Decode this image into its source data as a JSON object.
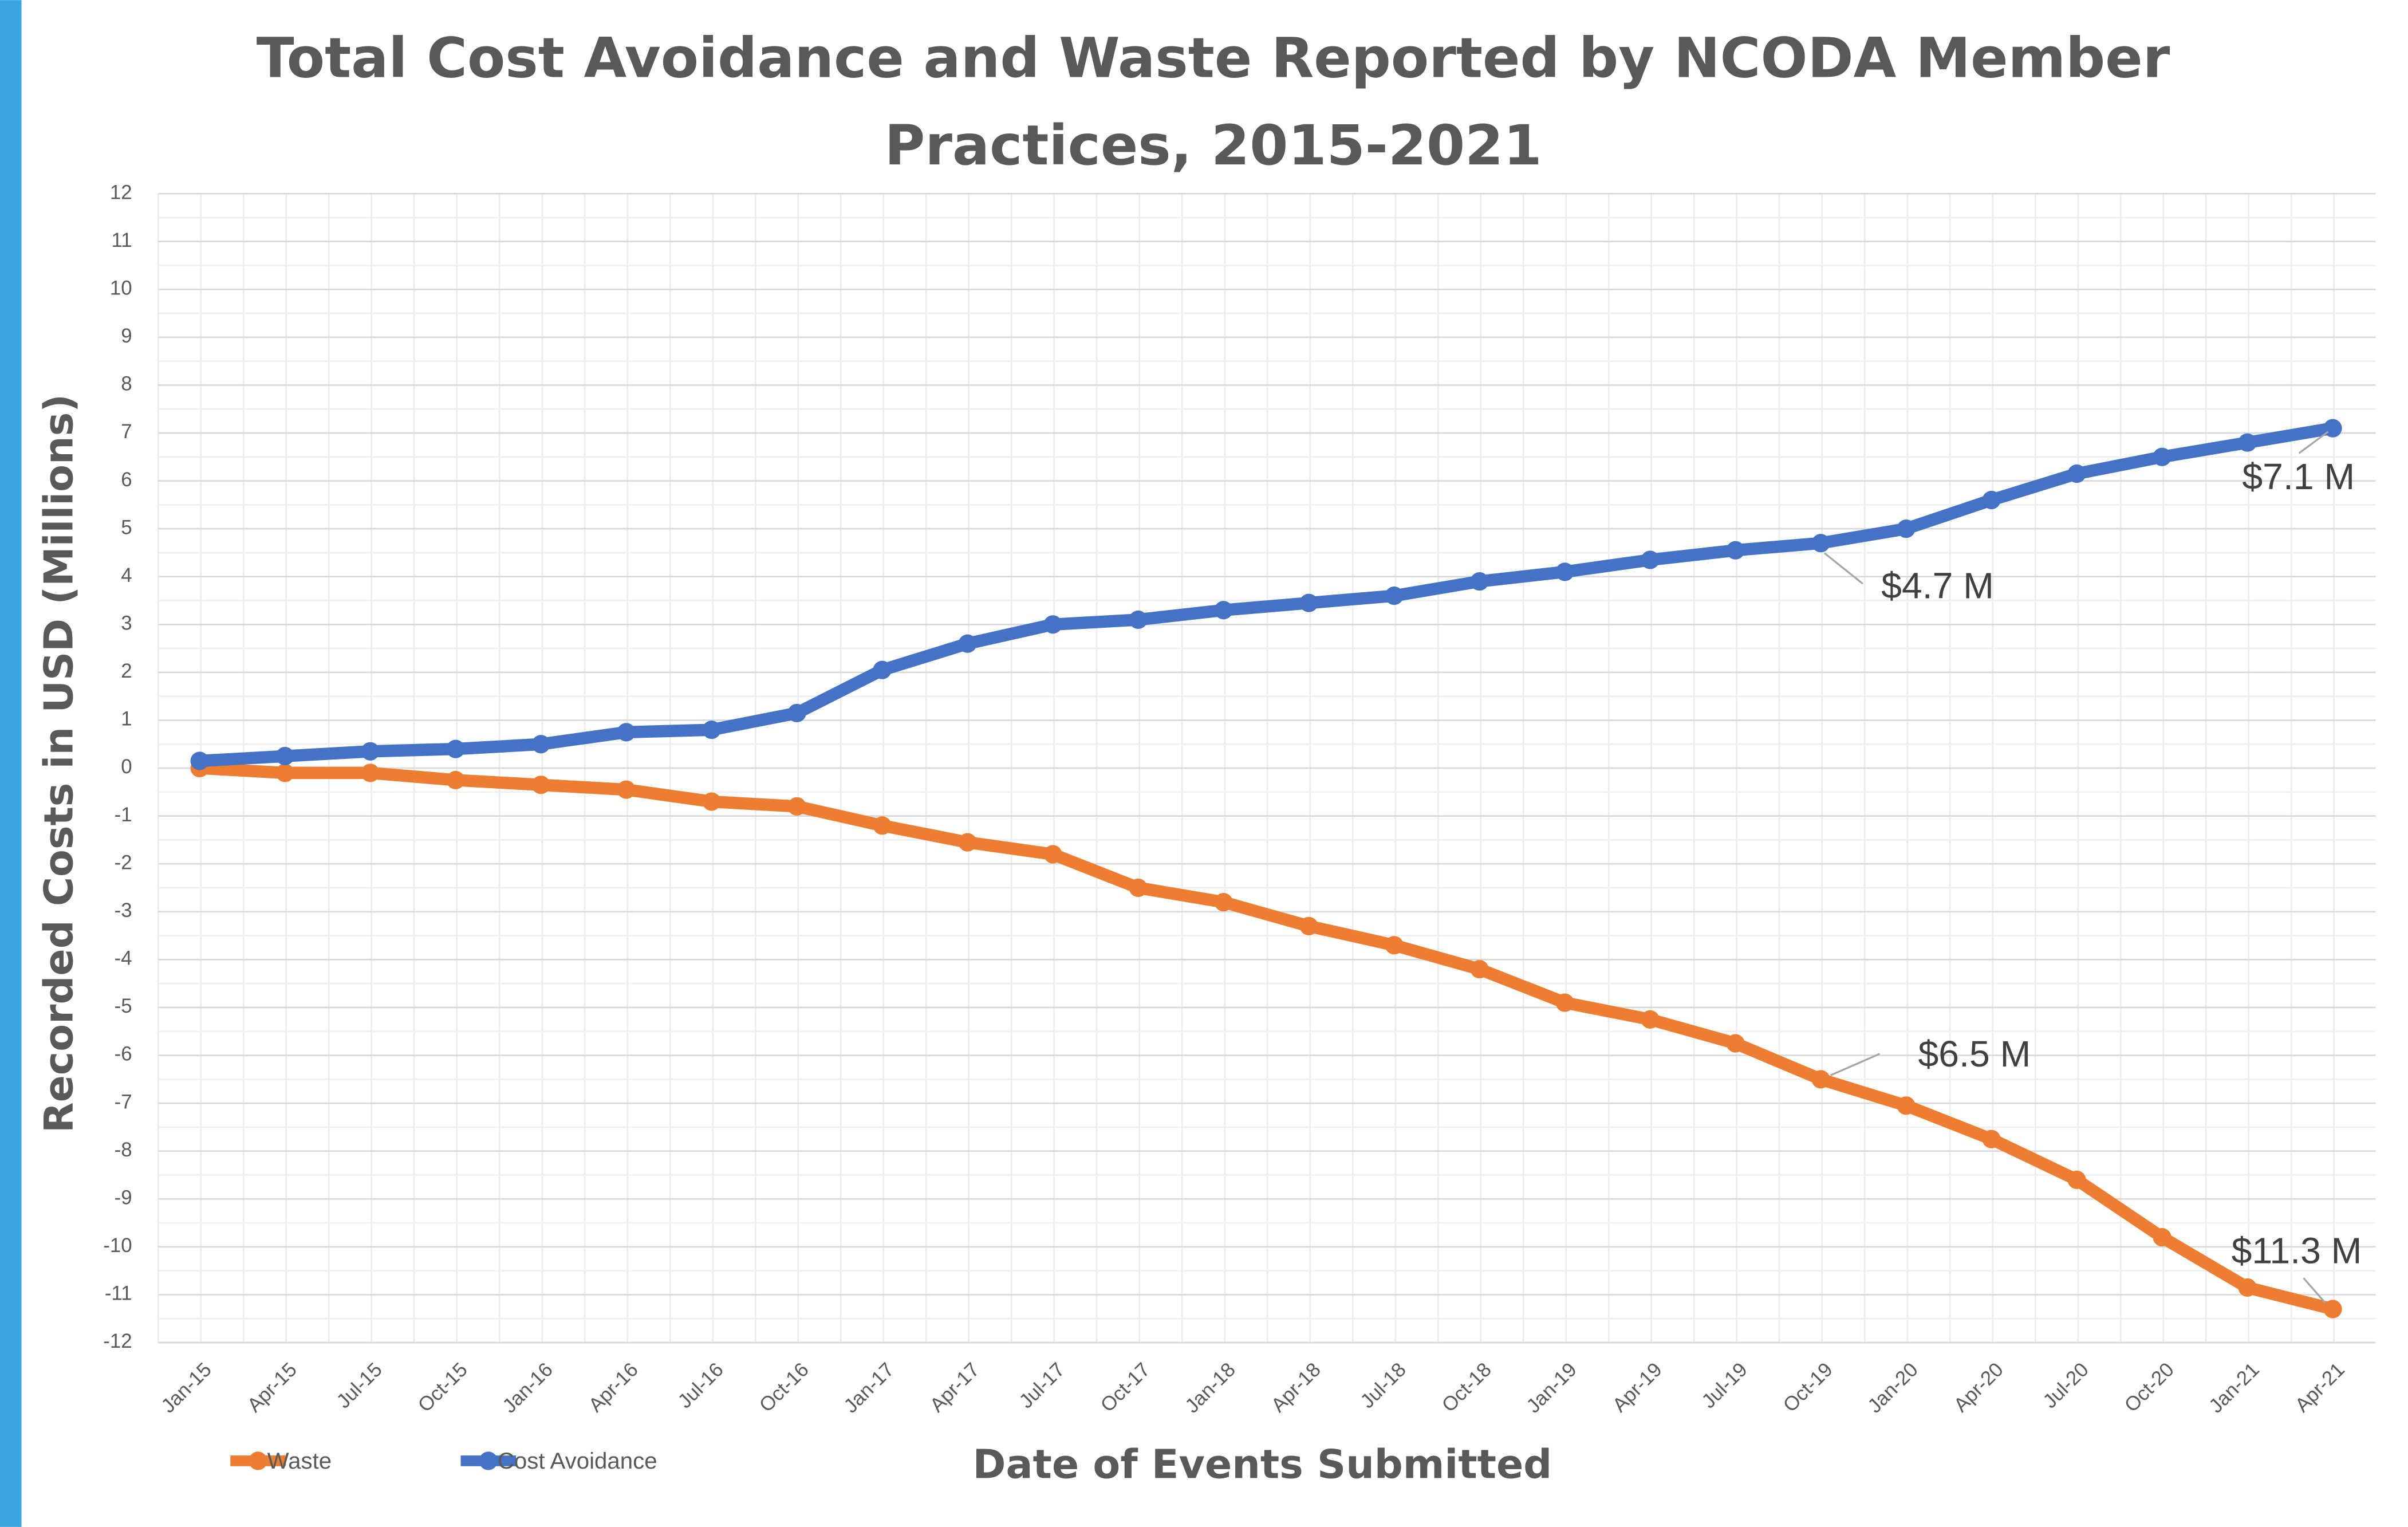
{
  "chart_data": {
    "type": "line",
    "title": "Total Cost Avoidance and Waste Reported by NCODA Member Practices, 2015-2021",
    "xlabel": "Date of Events Submitted",
    "ylabel": "Recorded Costs in USD (Millions)",
    "categories": [
      "Jan-15",
      "Apr-15",
      "Jul-15",
      "Oct-15",
      "Jan-16",
      "Apr-16",
      "Jul-16",
      "Oct-16",
      "Jan-17",
      "Apr-17",
      "Jul-17",
      "Oct-17",
      "Jan-18",
      "Apr-18",
      "Jul-18",
      "Oct-18",
      "Jan-19",
      "Apr-19",
      "Jul-19",
      "Oct-19",
      "Jan-20",
      "Apr-20",
      "Jul-20",
      "Oct-20",
      "Jan-21",
      "Apr-21"
    ],
    "series": [
      {
        "name": "Waste",
        "color": "#ed7d31",
        "values": [
          0,
          -0.1,
          -0.1,
          -0.25,
          -0.35,
          -0.45,
          -0.7,
          -0.8,
          -1.2,
          -1.55,
          -1.8,
          -2.5,
          -2.8,
          -3.3,
          -3.7,
          -4.2,
          -4.9,
          -5.25,
          -5.75,
          -6.5,
          -7.05,
          -7.75,
          -8.6,
          -9.8,
          -10.85,
          -11.3
        ]
      },
      {
        "name": "Cost Avoidance",
        "color": "#4472c4",
        "values": [
          0.15,
          0.25,
          0.35,
          0.4,
          0.5,
          0.75,
          0.8,
          1.15,
          2.05,
          2.6,
          3.0,
          3.1,
          3.3,
          3.45,
          3.6,
          3.9,
          4.1,
          4.35,
          4.55,
          4.7,
          5.0,
          5.6,
          6.15,
          6.5,
          6.8,
          7.1
        ]
      }
    ],
    "annotations": [
      "$7.1 M",
      "$4.7 M",
      "$6.5 M",
      "$11.3 M"
    ],
    "ylim": [
      -12,
      12
    ],
    "yticks": [
      -12,
      -11,
      -10,
      -9,
      -8,
      -7,
      -6,
      -5,
      -4,
      -3,
      -2,
      -1,
      0,
      1,
      2,
      3,
      4,
      5,
      6,
      7,
      8,
      9,
      10,
      11,
      12
    ],
    "grid": true,
    "legend": "bottom-left"
  }
}
